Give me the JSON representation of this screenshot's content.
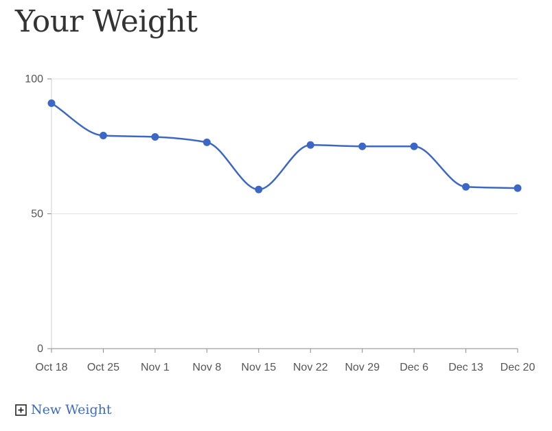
{
  "page": {
    "title": "Your Weight"
  },
  "actions": {
    "new_weight_label": "New Weight"
  },
  "icons": {
    "new_weight": "plus-square-icon"
  },
  "colors": {
    "series": "#3d67c4",
    "grid": "#e2e2e2",
    "axis": "#888888"
  },
  "chart_data": {
    "type": "line",
    "categories": [
      "Oct 18",
      "Oct 25",
      "Nov 1",
      "Nov 8",
      "Nov 15",
      "Nov 22",
      "Nov 29",
      "Dec 6",
      "Dec 13",
      "Dec 20"
    ],
    "series": [
      {
        "values": [
          91,
          79,
          78.5,
          76.5,
          59,
          75.5,
          75,
          75,
          60,
          59.5
        ]
      }
    ],
    "ylim": [
      0,
      100
    ],
    "yticks": [
      0,
      50,
      100
    ],
    "grid": true,
    "smooth": true,
    "markers": true,
    "legend": "none"
  }
}
